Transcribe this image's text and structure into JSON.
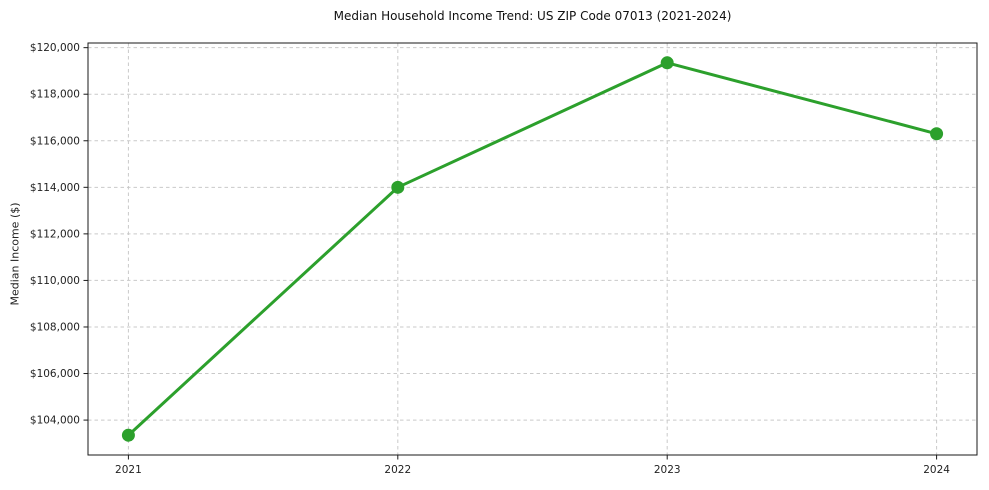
{
  "chart_data": {
    "type": "line",
    "title": "Median Household Income Trend: US ZIP Code 07013 (2021-2024)",
    "xlabel": "",
    "ylabel": "Median Income ($)",
    "x": [
      2021,
      2022,
      2023,
      2024
    ],
    "x_tick_labels": [
      "2021",
      "2022",
      "2023",
      "2024"
    ],
    "series": [
      {
        "name": "Median Household Income",
        "values": [
          103350,
          114000,
          119350,
          116300
        ]
      }
    ],
    "y_ticks": [
      104000,
      106000,
      108000,
      110000,
      112000,
      114000,
      116000,
      118000,
      120000
    ],
    "y_tick_labels": [
      "$104,000",
      "$106,000",
      "$108,000",
      "$110,000",
      "$112,000",
      "$114,000",
      "$116,000",
      "$118,000",
      "$120,000"
    ],
    "ylim": [
      102500,
      120200
    ],
    "xlim": [
      2020.85,
      2024.15
    ],
    "grid": true,
    "legend_position": "none",
    "colors": {
      "line": "#2ca02c",
      "marker": "#2ca02c",
      "grid": "#c9c9c9",
      "spine": "#1a1a1a",
      "text": "#222222"
    }
  }
}
